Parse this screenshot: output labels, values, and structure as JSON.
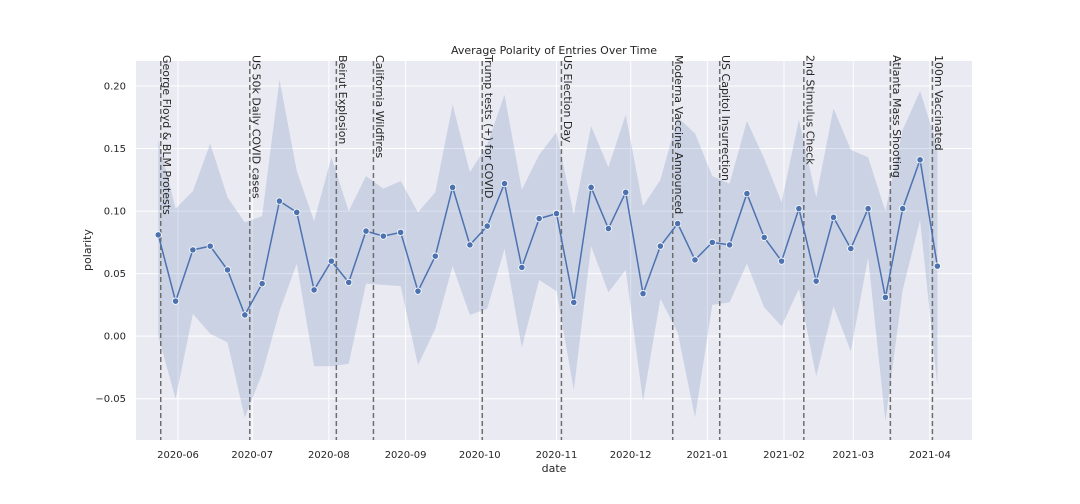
{
  "chart_data": {
    "type": "line",
    "title": "Average Polarity of Entries Over Time",
    "xlabel": "date",
    "ylabel": "polarity",
    "xlim": [
      "2020-05-15",
      "2021-04-18"
    ],
    "ylim": [
      -0.083,
      0.22
    ],
    "grid": true,
    "colors": {
      "line": "#4c72b0",
      "band": "#4c72b0",
      "background": "#eaeaf2",
      "event_line": "#6e6e6e"
    },
    "x_ticks": [
      {
        "date": "2020-06-01",
        "label": "2020-06"
      },
      {
        "date": "2020-07-01",
        "label": "2020-07"
      },
      {
        "date": "2020-08-01",
        "label": "2020-08"
      },
      {
        "date": "2020-09-01",
        "label": "2020-09"
      },
      {
        "date": "2020-10-01",
        "label": "2020-10"
      },
      {
        "date": "2020-11-01",
        "label": "2020-11"
      },
      {
        "date": "2020-12-01",
        "label": "2020-12"
      },
      {
        "date": "2021-01-01",
        "label": "2021-01"
      },
      {
        "date": "2021-02-01",
        "label": "2021-02"
      },
      {
        "date": "2021-03-01",
        "label": "2021-03"
      },
      {
        "date": "2021-04-01",
        "label": "2021-04"
      }
    ],
    "y_ticks": [
      {
        "value": -0.05,
        "label": "−0.05"
      },
      {
        "value": 0.0,
        "label": "0.00"
      },
      {
        "value": 0.05,
        "label": "0.05"
      },
      {
        "value": 0.1,
        "label": "0.10"
      },
      {
        "value": 0.15,
        "label": "0.15"
      },
      {
        "value": 0.2,
        "label": "0.20"
      }
    ],
    "series": [
      {
        "x": [
          "2020-05-24",
          "2020-05-31",
          "2020-06-07",
          "2020-06-14",
          "2020-06-21",
          "2020-06-28",
          "2020-07-05",
          "2020-07-12",
          "2020-07-19",
          "2020-07-26",
          "2020-08-02",
          "2020-08-09",
          "2020-08-16",
          "2020-08-23",
          "2020-08-30",
          "2020-09-06",
          "2020-09-13",
          "2020-09-20",
          "2020-09-27",
          "2020-10-04",
          "2020-10-11",
          "2020-10-18",
          "2020-10-25",
          "2020-11-01",
          "2020-11-08",
          "2020-11-15",
          "2020-11-22",
          "2020-11-29",
          "2020-12-06",
          "2020-12-13",
          "2020-12-20",
          "2020-12-27",
          "2021-01-03",
          "2021-01-10",
          "2021-01-17",
          "2021-01-24",
          "2021-01-31",
          "2021-02-07",
          "2021-02-14",
          "2021-02-21",
          "2021-02-28",
          "2021-03-07",
          "2021-03-14",
          "2021-03-21",
          "2021-03-28",
          "2021-04-04"
        ],
        "values": [
          0.081,
          0.028,
          0.069,
          0.072,
          0.053,
          0.017,
          0.042,
          0.108,
          0.099,
          0.037,
          0.06,
          0.043,
          0.084,
          0.08,
          0.083,
          0.036,
          0.064,
          0.119,
          0.073,
          0.088,
          0.122,
          0.055,
          0.094,
          0.098,
          0.027,
          0.119,
          0.086,
          0.115,
          0.034,
          0.072,
          0.09,
          0.061,
          0.075,
          0.073,
          0.114,
          0.079,
          0.06,
          0.102,
          0.044,
          0.095,
          0.07,
          0.102,
          0.031,
          0.102,
          0.141,
          0.056
        ],
        "lower": [
          0.0,
          -0.05,
          0.018,
          0.002,
          -0.005,
          -0.065,
          -0.03,
          0.02,
          0.058,
          -0.024,
          -0.024,
          -0.022,
          0.042,
          0.041,
          0.04,
          -0.023,
          0.006,
          0.056,
          0.017,
          0.022,
          0.07,
          -0.009,
          0.045,
          0.036,
          -0.043,
          0.072,
          0.035,
          0.053,
          -0.052,
          0.03,
          0.003,
          -0.065,
          0.025,
          0.027,
          0.058,
          0.023,
          0.008,
          0.038,
          -0.032,
          0.024,
          -0.012,
          0.063,
          -0.068,
          0.037,
          0.093,
          -0.04
        ],
        "upper": [
          0.157,
          0.102,
          0.116,
          0.154,
          0.111,
          0.091,
          0.096,
          0.205,
          0.132,
          0.092,
          0.143,
          0.1,
          0.128,
          0.118,
          0.124,
          0.099,
          0.115,
          0.185,
          0.131,
          0.153,
          0.193,
          0.117,
          0.145,
          0.163,
          0.097,
          0.168,
          0.135,
          0.177,
          0.104,
          0.125,
          0.175,
          0.162,
          0.128,
          0.122,
          0.172,
          0.142,
          0.107,
          0.173,
          0.111,
          0.182,
          0.149,
          0.143,
          0.1,
          0.165,
          0.196,
          0.152
        ]
      }
    ],
    "events": [
      {
        "date": "2020-05-25",
        "label": "George Floyd & BLM Protests"
      },
      {
        "date": "2020-06-30",
        "label": "US 50k Daily COVID cases"
      },
      {
        "date": "2020-08-04",
        "label": "Beirut Explosion"
      },
      {
        "date": "2020-08-19",
        "label": "California Wildfires"
      },
      {
        "date": "2020-10-02",
        "label": "Trump tests (+) for COVID"
      },
      {
        "date": "2020-11-03",
        "label": "US Election Day"
      },
      {
        "date": "2020-12-18",
        "label": "Moderna Vaccine Announced"
      },
      {
        "date": "2021-01-06",
        "label": "US Capitol Insurrection"
      },
      {
        "date": "2021-02-09",
        "label": "2nd Stimulus Check"
      },
      {
        "date": "2021-03-16",
        "label": "Atlanta Mass Shooting"
      },
      {
        "date": "2021-04-02",
        "label": "100m Vaccinated"
      }
    ]
  }
}
